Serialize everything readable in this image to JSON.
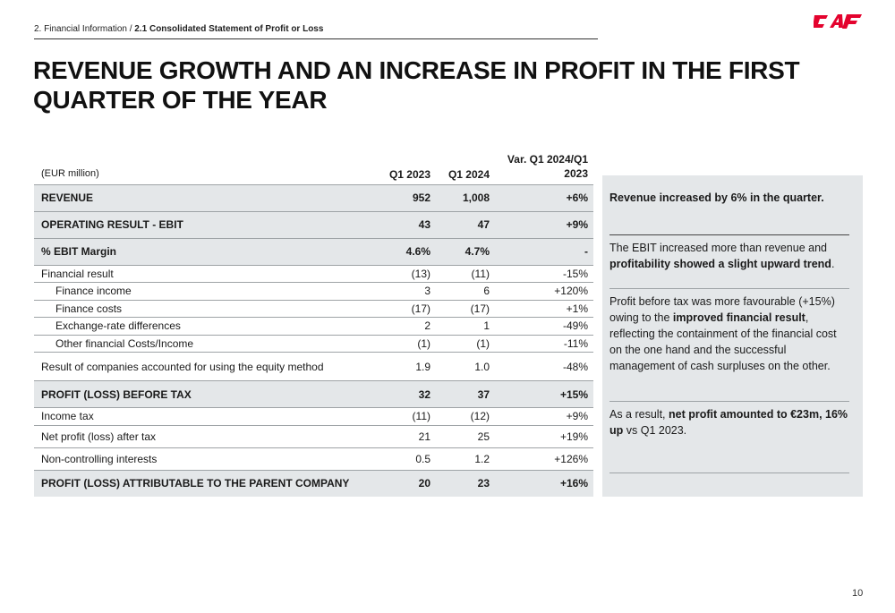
{
  "breadcrumb": {
    "section": "2. Financial Information",
    "separator": " / ",
    "current": "2.1 Consolidated Statement of Profit or Loss"
  },
  "logo": {
    "text": "CAF",
    "color": "#e4032e"
  },
  "title": "REVENUE GROWTH AND AN INCREASE IN PROFIT IN THE FIRST QUARTER OF THE YEAR",
  "table": {
    "unit": "(EUR million)",
    "columns": [
      "Q1 2023",
      "Q1 2024",
      "Var. Q1 2024/Q1 2023"
    ],
    "rows": [
      {
        "label": "REVENUE",
        "q1_2023": "952",
        "q1_2024": "1,008",
        "var": "+6%",
        "bold": true
      },
      {
        "label": "OPERATING RESULT - EBIT",
        "q1_2023": "43",
        "q1_2024": "47",
        "var": "+9%",
        "bold": true
      },
      {
        "label": "% EBIT Margin",
        "q1_2023": "4.6%",
        "q1_2024": "4.7%",
        "var": "-",
        "bold": true
      },
      {
        "label": "Financial result",
        "q1_2023": "(13)",
        "q1_2024": "(11)",
        "var": "-15%"
      },
      {
        "label": "Finance income",
        "q1_2023": "3",
        "q1_2024": "6",
        "var": "+120%",
        "indent": true
      },
      {
        "label": "Finance costs",
        "q1_2023": "(17)",
        "q1_2024": "(17)",
        "var": "+1%",
        "indent": true
      },
      {
        "label": "Exchange-rate differences",
        "q1_2023": "2",
        "q1_2024": "1",
        "var": "-49%",
        "indent": true
      },
      {
        "label": "Other financial Costs/Income",
        "q1_2023": "(1)",
        "q1_2024": "(1)",
        "var": "-11%",
        "indent": true
      },
      {
        "label": "Result of companies accounted for using the equity method",
        "q1_2023": "1.9",
        "q1_2024": "1.0",
        "var": "-48%",
        "tall": true
      },
      {
        "label": "PROFIT (LOSS) BEFORE TAX",
        "q1_2023": "32",
        "q1_2024": "37",
        "var": "+15%",
        "bold": true
      },
      {
        "label": "Income tax",
        "q1_2023": "(11)",
        "q1_2024": "(12)",
        "var": "+9%"
      },
      {
        "label": "Net profit (loss) after tax",
        "q1_2023": "21",
        "q1_2024": "25",
        "var": "+19%",
        "mid": true
      },
      {
        "label": "Non-controlling interests",
        "q1_2023": "0.5",
        "q1_2024": "1.2",
        "var": "+126%",
        "mid": true
      },
      {
        "label": "PROFIT (LOSS) ATTRIBUTABLE TO THE PARENT COMPANY",
        "q1_2023": "20",
        "q1_2024": "23",
        "var": "+16%",
        "bold": true
      }
    ]
  },
  "highlights": {
    "h1": "Revenue increased by 6% in the quarter.",
    "h2_a": "The EBIT increased more than revenue and ",
    "h2_b": "profitability showed a slight upward trend",
    "h2_c": ".",
    "h3_a": "Profit before tax was more favourable (+15%) owing to the ",
    "h3_b": "improved financial result",
    "h3_c": ", reflecting the containment of the financial cost on the one hand and the successful management of cash surpluses on the other.",
    "h4_a": "As a result, ",
    "h4_b": "net profit amounted to €23m, 16% up",
    "h4_c": " vs Q1 2023."
  },
  "page_number": "10"
}
